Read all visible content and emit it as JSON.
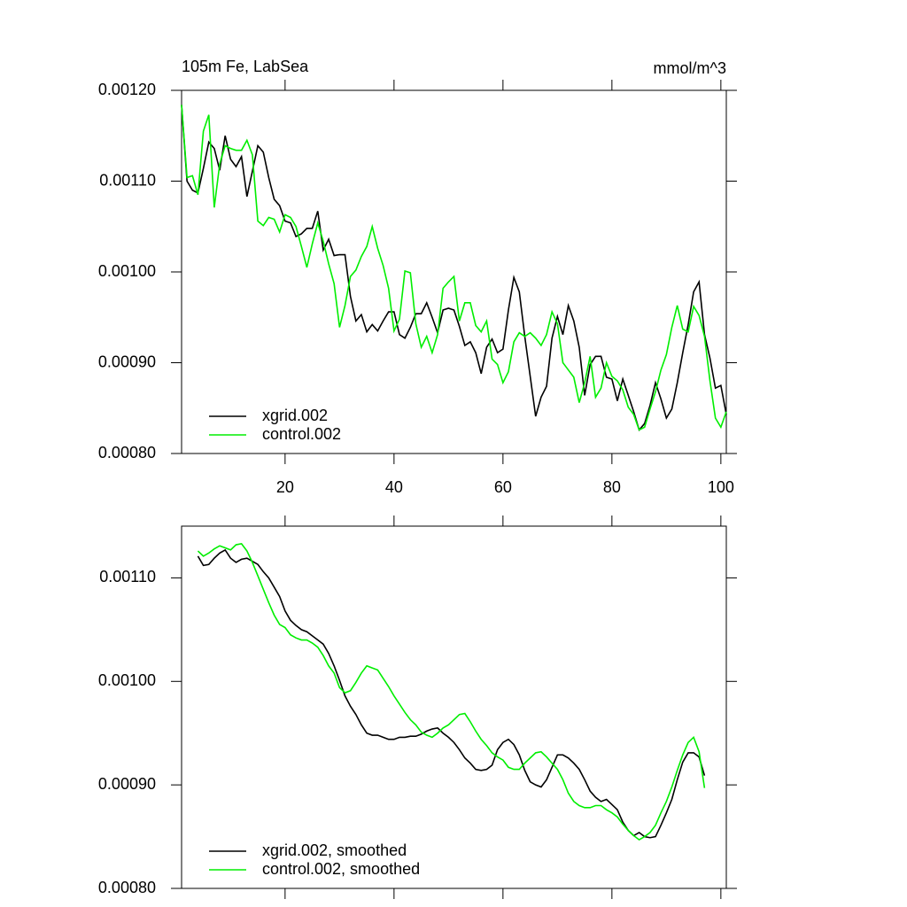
{
  "chart_data": [
    {
      "type": "line",
      "title": "105m Fe, LabSea",
      "units": "mmol/m^3",
      "x": [
        1,
        2,
        3,
        4,
        5,
        6,
        7,
        8,
        9,
        10,
        11,
        12,
        13,
        14,
        15,
        16,
        17,
        18,
        19,
        20,
        21,
        22,
        23,
        24,
        25,
        26,
        27,
        28,
        29,
        30,
        31,
        32,
        33,
        34,
        35,
        36,
        37,
        38,
        39,
        40,
        41,
        42,
        43,
        44,
        45,
        46,
        47,
        48,
        49,
        50,
        51,
        52,
        53,
        54,
        55,
        56,
        57,
        58,
        59,
        60,
        61,
        62,
        63,
        64,
        65,
        66,
        67,
        68,
        69,
        70,
        71,
        72,
        73,
        74,
        75,
        76,
        77,
        78,
        79,
        80,
        81,
        82,
        83,
        84,
        85,
        86,
        87,
        88,
        89,
        90,
        91,
        92,
        93,
        94,
        95,
        96,
        97,
        98,
        99,
        100,
        101
      ],
      "series": [
        {
          "name": "xgrid.002",
          "color": "#000000",
          "values": [
            0.001184,
            0.0011,
            0.00109,
            0.001087,
            0.001114,
            0.001143,
            0.001136,
            0.001112,
            0.00115,
            0.001124,
            0.001116,
            0.001127,
            0.001083,
            0.001111,
            0.001139,
            0.001132,
            0.001104,
            0.00108,
            0.001073,
            0.001056,
            0.001054,
            0.001039,
            0.001042,
            0.001048,
            0.001048,
            0.001067,
            0.001024,
            0.001036,
            0.001018,
            0.001019,
            0.001019,
            0.000973,
            0.000946,
            0.000953,
            0.000934,
            0.000942,
            0.000935,
            0.000946,
            0.000956,
            0.000956,
            0.000931,
            0.000927,
            0.000939,
            0.000954,
            0.000954,
            0.000966,
            0.00095,
            0.000933,
            0.000958,
            0.00096,
            0.000958,
            0.00094,
            0.000919,
            0.000923,
            0.000911,
            0.000888,
            0.000917,
            0.000926,
            0.000911,
            0.000915,
            0.000958,
            0.000994,
            0.000978,
            0.000929,
            0.000885,
            0.000841,
            0.000862,
            0.000874,
            0.000927,
            0.000951,
            0.000931,
            0.000963,
            0.000946,
            0.000917,
            0.000864,
            0.000898,
            0.000907,
            0.000907,
            0.000884,
            0.000882,
            0.000858,
            0.000882,
            0.000864,
            0.000846,
            0.000826,
            0.000833,
            0.000853,
            0.000878,
            0.00086,
            0.000839,
            0.000849,
            0.000878,
            0.000911,
            0.000942,
            0.000978,
            0.000989,
            0.000931,
            0.000905,
            0.000872,
            0.000875,
            0.000843
          ]
        },
        {
          "name": "control.002",
          "color": "#00ee00",
          "values": [
            0.001184,
            0.001104,
            0.001106,
            0.001085,
            0.001155,
            0.001173,
            0.001071,
            0.001119,
            0.001139,
            0.001136,
            0.001134,
            0.001134,
            0.001145,
            0.001129,
            0.001056,
            0.001051,
            0.00106,
            0.001058,
            0.001044,
            0.001063,
            0.00106,
            0.00105,
            0.001028,
            0.001005,
            0.001031,
            0.001054,
            0.001034,
            0.001009,
            0.000987,
            0.000939,
            0.000963,
            0.000995,
            0.001002,
            0.001017,
            0.001028,
            0.00105,
            0.001026,
            0.001007,
            0.000982,
            0.000935,
            0.000948,
            0.001001,
            0.000999,
            0.000943,
            0.000917,
            0.000929,
            0.000911,
            0.000931,
            0.000982,
            0.000989,
            0.000995,
            0.000946,
            0.000966,
            0.000966,
            0.000941,
            0.000934,
            0.000946,
            0.000904,
            0.000898,
            0.000878,
            0.00089,
            0.000923,
            0.000933,
            0.000929,
            0.000933,
            0.000927,
            0.000919,
            0.000931,
            0.000956,
            0.000943,
            0.0009,
            0.000892,
            0.000884,
            0.000856,
            0.000878,
            0.000907,
            0.000862,
            0.000872,
            0.0009,
            0.000885,
            0.00088,
            0.00087,
            0.000851,
            0.000843,
            0.000826,
            0.000829,
            0.000849,
            0.000868,
            0.000892,
            0.000909,
            0.000939,
            0.000963,
            0.000937,
            0.000934,
            0.000962,
            0.000952,
            0.000929,
            0.00088,
            0.000839,
            0.000829,
            0.000846
          ]
        }
      ],
      "xlim": [
        1,
        101
      ],
      "xticks": [
        20,
        40,
        60,
        80,
        100
      ],
      "show_xtick_labels": true,
      "ylim": [
        0.0008,
        0.0012
      ],
      "yticks": [
        {
          "value": 0.0008,
          "label": "0.00080"
        },
        {
          "value": 0.0009,
          "label": "0.00090"
        },
        {
          "value": 0.001,
          "label": "0.00100"
        },
        {
          "value": 0.0011,
          "label": "0.00110"
        },
        {
          "value": 0.0012,
          "label": "0.00120"
        }
      ],
      "legend": "lower left"
    },
    {
      "type": "line",
      "x": [
        4,
        5,
        6,
        7,
        8,
        9,
        10,
        11,
        12,
        13,
        14,
        15,
        16,
        17,
        18,
        19,
        20,
        21,
        22,
        23,
        24,
        25,
        26,
        27,
        28,
        29,
        30,
        31,
        32,
        33,
        34,
        35,
        36,
        37,
        38,
        39,
        40,
        41,
        42,
        43,
        44,
        45,
        46,
        47,
        48,
        49,
        50,
        51,
        52,
        53,
        54,
        55,
        56,
        57,
        58,
        59,
        60,
        61,
        62,
        63,
        64,
        65,
        66,
        67,
        68,
        69,
        70,
        71,
        72,
        73,
        74,
        75,
        76,
        77,
        78,
        79,
        80,
        81,
        82,
        83,
        84,
        85,
        86,
        87,
        88,
        89,
        90,
        91,
        92,
        93,
        94,
        95,
        96,
        97
      ],
      "series": [
        {
          "name": "xgrid.002, smoothed",
          "color": "#000000",
          "values": [
            0.001121,
            0.001112,
            0.001113,
            0.001119,
            0.001124,
            0.001127,
            0.001119,
            0.001115,
            0.001118,
            0.001119,
            0.001116,
            0.001113,
            0.001106,
            0.0011,
            0.001091,
            0.001082,
            0.001068,
            0.001059,
            0.001054,
            0.00105,
            0.001048,
            0.001044,
            0.00104,
            0.001036,
            0.001027,
            0.001015,
            0.001001,
            0.000986,
            0.000976,
            0.000968,
            0.000958,
            0.00095,
            0.000948,
            0.000948,
            0.000946,
            0.000944,
            0.000944,
            0.000946,
            0.000946,
            0.000947,
            0.000947,
            0.000949,
            0.000952,
            0.000954,
            0.000955,
            0.00095,
            0.000946,
            0.000941,
            0.000934,
            0.000926,
            0.000921,
            0.000915,
            0.000914,
            0.000915,
            0.000919,
            0.000934,
            0.000941,
            0.000944,
            0.000939,
            0.000929,
            0.000914,
            0.000903,
            0.0009,
            0.000898,
            0.000905,
            0.000917,
            0.000929,
            0.000929,
            0.000926,
            0.000921,
            0.000915,
            0.000905,
            0.000894,
            0.000888,
            0.000884,
            0.000886,
            0.000881,
            0.000876,
            0.000864,
            0.000856,
            0.000851,
            0.000854,
            0.00085,
            0.000849,
            0.00085,
            0.000861,
            0.000873,
            0.000886,
            0.000905,
            0.000922,
            0.000931,
            0.000931,
            0.000927,
            0.000909
          ]
        },
        {
          "name": "control.002, smoothed",
          "color": "#00ee00",
          "values": [
            0.001126,
            0.001121,
            0.001124,
            0.001128,
            0.001131,
            0.001129,
            0.001127,
            0.001132,
            0.001133,
            0.001126,
            0.001115,
            0.001102,
            0.001089,
            0.001076,
            0.001064,
            0.001055,
            0.001052,
            0.001045,
            0.001042,
            0.00104,
            0.00104,
            0.001037,
            0.001033,
            0.001025,
            0.001015,
            0.001008,
            0.000994,
            0.000989,
            0.000991,
            0.000999,
            0.001008,
            0.001015,
            0.001013,
            0.001011,
            0.001003,
            0.000995,
            0.000986,
            0.000978,
            0.00097,
            0.000963,
            0.000958,
            0.000951,
            0.000948,
            0.000946,
            0.00095,
            0.000955,
            0.000958,
            0.000963,
            0.000968,
            0.000969,
            0.000961,
            0.000952,
            0.000944,
            0.000938,
            0.000931,
            0.000927,
            0.000924,
            0.000917,
            0.000915,
            0.000915,
            0.000921,
            0.000926,
            0.000931,
            0.000932,
            0.000927,
            0.000921,
            0.000915,
            0.000905,
            0.000892,
            0.000884,
            0.00088,
            0.000878,
            0.000878,
            0.00088,
            0.00088,
            0.000876,
            0.000873,
            0.000869,
            0.000862,
            0.000856,
            0.000851,
            0.000847,
            0.00085,
            0.000854,
            0.000861,
            0.000873,
            0.000884,
            0.000898,
            0.000914,
            0.000929,
            0.000941,
            0.000946,
            0.000932,
            0.000897
          ]
        }
      ],
      "xlim": [
        1,
        101
      ],
      "xticks": [
        20,
        40,
        60,
        80,
        100
      ],
      "show_xtick_labels": false,
      "ylim": [
        0.0008,
        0.00115
      ],
      "yticks": [
        {
          "value": 0.0008,
          "label": "0.00080"
        },
        {
          "value": 0.0009,
          "label": "0.00090"
        },
        {
          "value": 0.001,
          "label": "0.00100"
        },
        {
          "value": 0.0011,
          "label": "0.00110"
        }
      ],
      "legend": "lower left"
    }
  ]
}
